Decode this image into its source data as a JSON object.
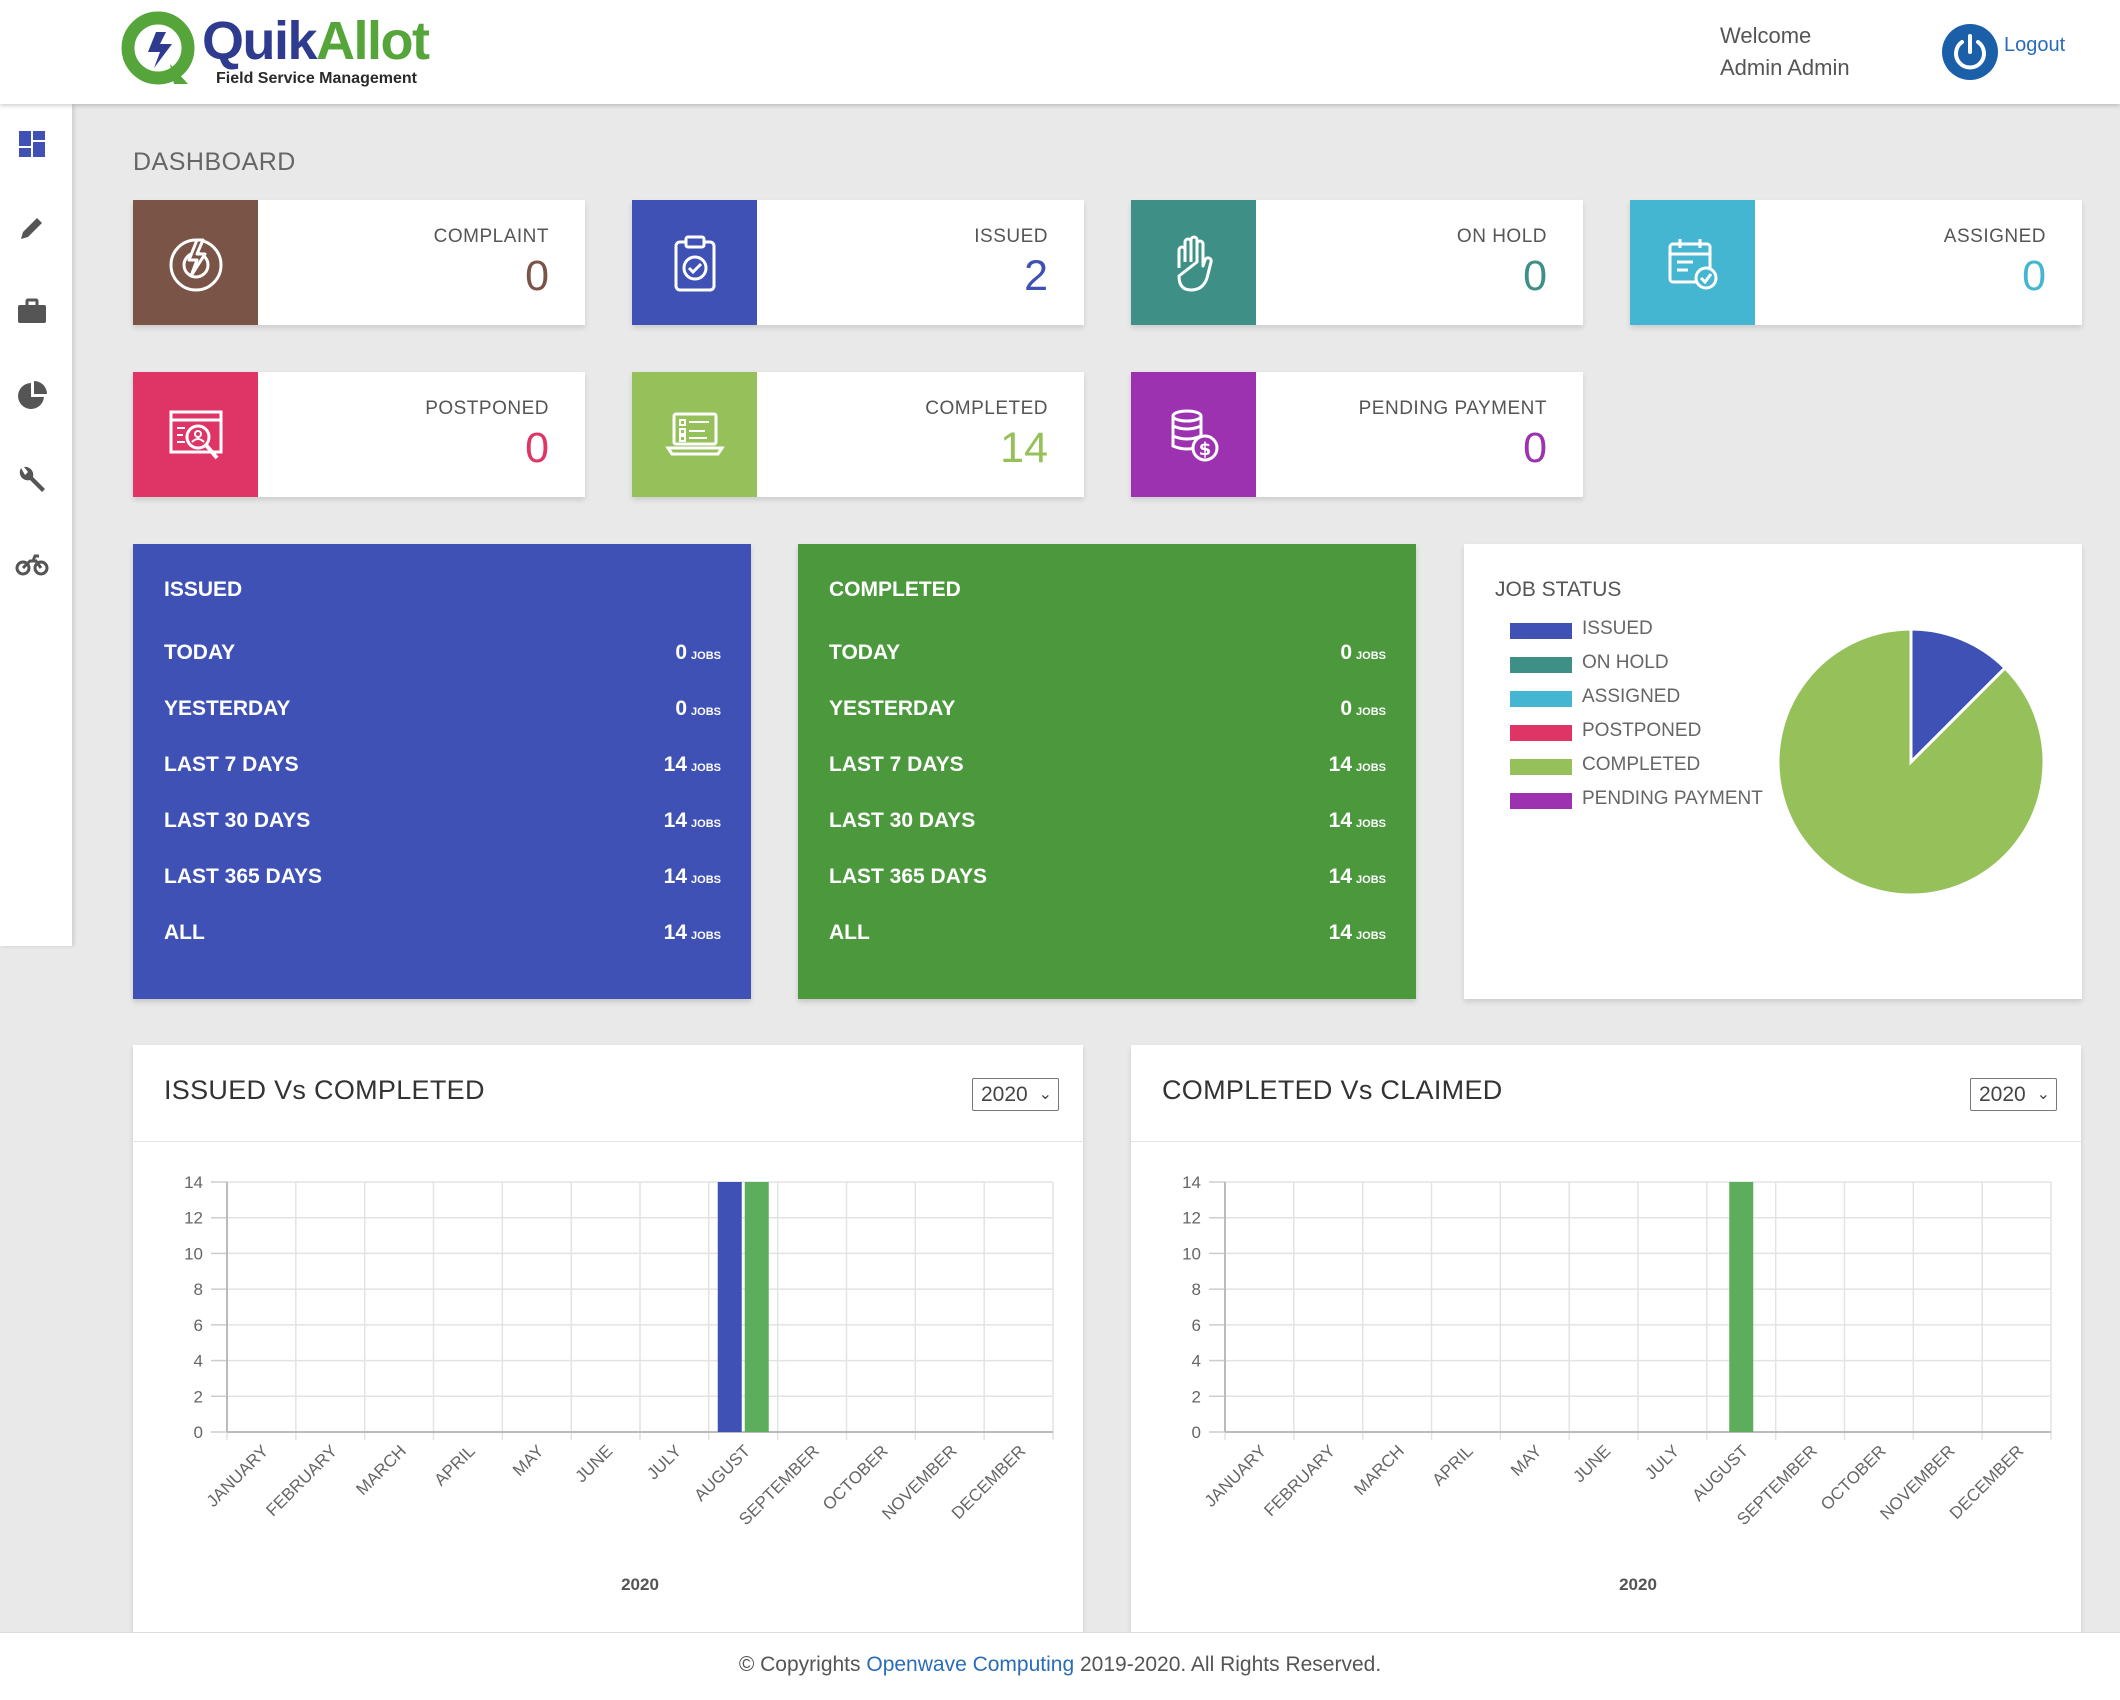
{
  "header": {
    "brand_quik": "Quik",
    "brand_allot": "Allot",
    "tagline": "Field Service Management",
    "welcome_line1": "Welcome",
    "welcome_line2": "Admin Admin",
    "logout_label": "Logout"
  },
  "sidebar": {
    "items": [
      {
        "icon": "dashboard-icon"
      },
      {
        "icon": "pencil-icon"
      },
      {
        "icon": "briefcase-icon"
      },
      {
        "icon": "pie-chart-icon"
      },
      {
        "icon": "wrench-icon"
      },
      {
        "icon": "motorcycle-icon"
      }
    ]
  },
  "page": {
    "title": "DASHBOARD"
  },
  "stats": [
    {
      "label": "COMPLAINT",
      "value": "0",
      "color": "#7a5547",
      "icon": "complaint-icon"
    },
    {
      "label": "ISSUED",
      "value": "2",
      "color": "#3f51b5",
      "icon": "clipboard-check-icon"
    },
    {
      "label": "ON HOLD",
      "value": "0",
      "color": "#3e9086",
      "icon": "hand-stop-icon"
    },
    {
      "label": "ASSIGNED",
      "value": "0",
      "color": "#45b6d1",
      "icon": "calendar-check-icon"
    },
    {
      "label": "POSTPONED",
      "value": "0",
      "color": "#de3466",
      "icon": "search-report-icon"
    },
    {
      "label": "COMPLETED",
      "value": "14",
      "color": "#96c15a",
      "icon": "laptop-checklist-icon"
    },
    {
      "label": "PENDING PAYMENT",
      "value": "0",
      "color": "#9c32b0",
      "icon": "coins-dollar-icon"
    }
  ],
  "issued_summary": {
    "title": "ISSUED",
    "unit": "JOBS",
    "rows": [
      {
        "label": "TODAY",
        "value": "0"
      },
      {
        "label": "YESTERDAY",
        "value": "0"
      },
      {
        "label": "LAST 7 DAYS",
        "value": "14"
      },
      {
        "label": "LAST 30 DAYS",
        "value": "14"
      },
      {
        "label": "LAST 365 DAYS",
        "value": "14"
      },
      {
        "label": "ALL",
        "value": "14"
      }
    ]
  },
  "completed_summary": {
    "title": "COMPLETED",
    "unit": "JOBS",
    "rows": [
      {
        "label": "TODAY",
        "value": "0"
      },
      {
        "label": "YESTERDAY",
        "value": "0"
      },
      {
        "label": "LAST 7 DAYS",
        "value": "14"
      },
      {
        "label": "LAST 30 DAYS",
        "value": "14"
      },
      {
        "label": "LAST 365 DAYS",
        "value": "14"
      },
      {
        "label": "ALL",
        "value": "14"
      }
    ]
  },
  "job_status": {
    "title": "JOB STATUS",
    "legend": [
      {
        "label": "ISSUED",
        "color": "#3f51b5"
      },
      {
        "label": "ON HOLD",
        "color": "#3e9086"
      },
      {
        "label": "ASSIGNED",
        "color": "#45b6d1"
      },
      {
        "label": "POSTPONED",
        "color": "#de3466"
      },
      {
        "label": "COMPLETED",
        "color": "#96c15a"
      },
      {
        "label": "PENDING PAYMENT",
        "color": "#9c32b0"
      }
    ]
  },
  "chart_data": [
    {
      "type": "pie",
      "title": "JOB STATUS",
      "categories": [
        "ISSUED",
        "ON HOLD",
        "ASSIGNED",
        "POSTPONED",
        "COMPLETED",
        "PENDING PAYMENT"
      ],
      "values": [
        2,
        0,
        0,
        0,
        14,
        0
      ],
      "colors": [
        "#3f51b5",
        "#3e9086",
        "#45b6d1",
        "#de3466",
        "#96c15a",
        "#9c32b0"
      ]
    },
    {
      "type": "bar",
      "title": "ISSUED Vs COMPLETED",
      "year_select": "2020",
      "xlabel": "2020",
      "categories": [
        "JANUARY",
        "FEBRUARY",
        "MARCH",
        "APRIL",
        "MAY",
        "JUNE",
        "JULY",
        "AUGUST",
        "SEPTEMBER",
        "OCTOBER",
        "NOVEMBER",
        "DECEMBER"
      ],
      "series": [
        {
          "values": [
            0,
            0,
            0,
            0,
            0,
            0,
            0,
            14,
            0,
            0,
            0,
            0
          ],
          "color": "#3f51b5"
        },
        {
          "values": [
            0,
            0,
            0,
            0,
            0,
            0,
            0,
            14,
            0,
            0,
            0,
            0
          ],
          "color": "#5cad5c"
        }
      ],
      "ylim": [
        0,
        14
      ],
      "yticks": [
        0,
        2,
        4,
        6,
        8,
        10,
        12,
        14
      ],
      "grid": true
    },
    {
      "type": "bar",
      "title": "COMPLETED Vs CLAIMED",
      "year_select": "2020",
      "xlabel": "2020",
      "categories": [
        "JANUARY",
        "FEBRUARY",
        "MARCH",
        "APRIL",
        "MAY",
        "JUNE",
        "JULY",
        "AUGUST",
        "SEPTEMBER",
        "OCTOBER",
        "NOVEMBER",
        "DECEMBER"
      ],
      "series": [
        {
          "values": [
            0,
            0,
            0,
            0,
            0,
            0,
            0,
            14,
            0,
            0,
            0,
            0
          ],
          "color": "#5cad5c"
        }
      ],
      "ylim": [
        0,
        14
      ],
      "yticks": [
        0,
        2,
        4,
        6,
        8,
        10,
        12,
        14
      ],
      "grid": true
    }
  ],
  "footer": {
    "prefix": "© Copyrights ",
    "link": "Openwave Computing",
    "suffix": " 2019-2020. All Rights Reserved."
  }
}
